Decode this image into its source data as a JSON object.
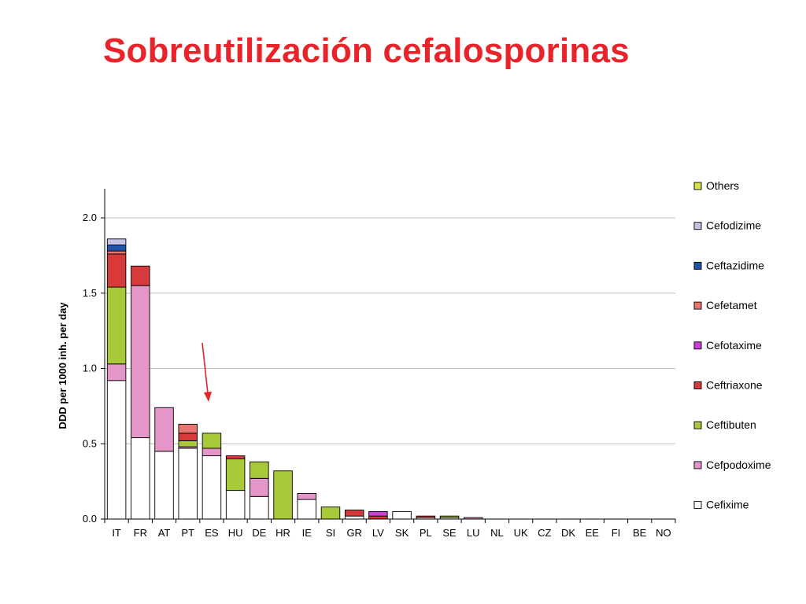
{
  "slide": {
    "title": "Sobreutilización cefalosporinas"
  },
  "chart_data": {
    "type": "bar",
    "stacked": true,
    "title": "",
    "xlabel": "",
    "ylabel": "DDD per 1000 inh. per day",
    "ylim": [
      0,
      2.2
    ],
    "yticks": [
      "0.0",
      "0.5",
      "1.0",
      "1.5",
      "2.0"
    ],
    "grid": true,
    "legend_position": "right",
    "categories": [
      "IT",
      "FR",
      "AT",
      "PT",
      "ES",
      "HU",
      "DE",
      "HR",
      "IE",
      "SI",
      "GR",
      "LV",
      "SK",
      "PL",
      "SE",
      "LU",
      "NL",
      "UK",
      "CZ",
      "DK",
      "EE",
      "FI",
      "BE",
      "NO"
    ],
    "series": [
      {
        "name": "Cefixime",
        "color": "#ffffff",
        "values": [
          0.92,
          0.54,
          0.45,
          0.47,
          0.42,
          0.19,
          0.15,
          0,
          0.13,
          0,
          0.02,
          0,
          0.05,
          0.01,
          0.01,
          0,
          0,
          0,
          0,
          0,
          0,
          0,
          0,
          0
        ]
      },
      {
        "name": "Cefpodoxime",
        "color": "#e596c8",
        "values": [
          0.11,
          1.01,
          0.29,
          0.01,
          0.05,
          0,
          0.12,
          0,
          0.04,
          0,
          0,
          0,
          0,
          0,
          0,
          0.01,
          0,
          0,
          0,
          0,
          0,
          0,
          0,
          0
        ]
      },
      {
        "name": "Ceftibuten",
        "color": "#a9c93a",
        "values": [
          0.51,
          0,
          0,
          0.04,
          0.1,
          0.21,
          0.11,
          0.32,
          0,
          0.08,
          0,
          0,
          0,
          0,
          0.01,
          0,
          0,
          0,
          0,
          0,
          0,
          0,
          0,
          0
        ]
      },
      {
        "name": "Ceftriaxone",
        "color": "#d63a3a",
        "values": [
          0.22,
          0.13,
          0,
          0.05,
          0,
          0.02,
          0,
          0,
          0,
          0,
          0.04,
          0.02,
          0,
          0.01,
          0,
          0,
          0,
          0,
          0,
          0,
          0,
          0,
          0,
          0
        ]
      },
      {
        "name": "Cefotaxime",
        "color": "#cc3fd6",
        "values": [
          0,
          0,
          0,
          0,
          0,
          0,
          0,
          0,
          0,
          0,
          0,
          0.03,
          0,
          0,
          0,
          0,
          0,
          0,
          0,
          0,
          0,
          0,
          0,
          0
        ]
      },
      {
        "name": "Cefetamet",
        "color": "#e8766e",
        "values": [
          0.02,
          0,
          0,
          0.06,
          0,
          0,
          0,
          0,
          0,
          0,
          0,
          0,
          0,
          0,
          0,
          0,
          0,
          0,
          0,
          0,
          0,
          0,
          0,
          0
        ]
      },
      {
        "name": "Ceftazidime",
        "color": "#2255a8",
        "values": [
          0.04,
          0,
          0,
          0,
          0,
          0,
          0,
          0,
          0,
          0,
          0,
          0,
          0,
          0,
          0,
          0,
          0,
          0,
          0,
          0,
          0,
          0,
          0,
          0
        ]
      },
      {
        "name": "Cefodizime",
        "color": "#c3c3e6",
        "values": [
          0.04,
          0,
          0,
          0,
          0,
          0,
          0,
          0,
          0,
          0,
          0,
          0,
          0,
          0,
          0,
          0,
          0,
          0,
          0,
          0,
          0,
          0,
          0,
          0
        ]
      },
      {
        "name": "Others",
        "color": "#d8e24a",
        "values": [
          0,
          0,
          0,
          0,
          0,
          0,
          0,
          0,
          0,
          0,
          0,
          0,
          0,
          0,
          0,
          0,
          0,
          0,
          0,
          0,
          0,
          0,
          0,
          0
        ]
      }
    ],
    "annotation": {
      "type": "arrow",
      "color": "#e8242a",
      "target_category": "ES"
    }
  }
}
